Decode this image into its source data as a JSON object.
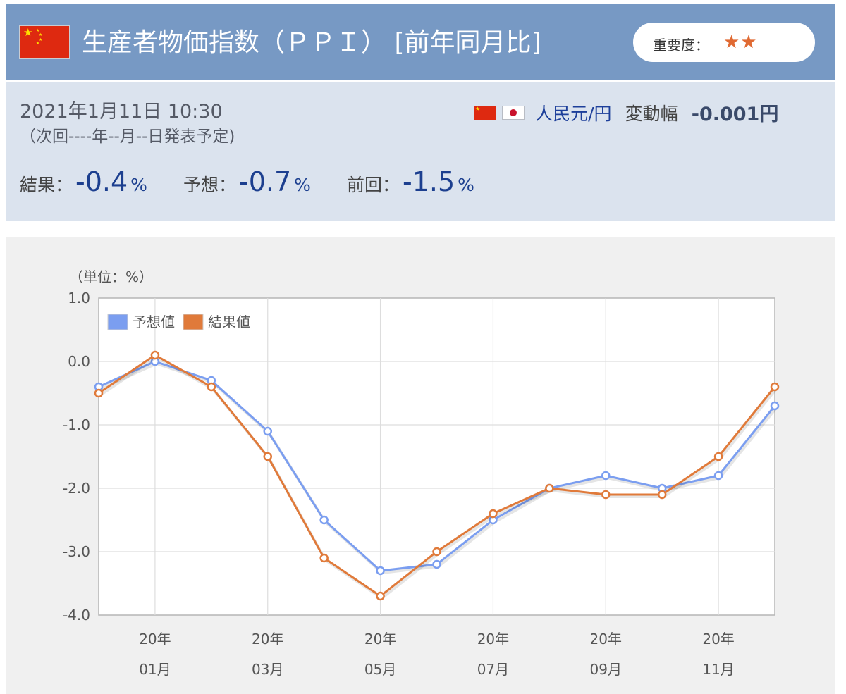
{
  "header": {
    "title": "生産者物価指数（ＰＰＩ） [前年同月比]",
    "importance_label": "重要度：",
    "importance_stars": "★★",
    "flag_icon": "china-flag-icon"
  },
  "info": {
    "date": "2021年1月11日 10:30",
    "next_release": "（次回----年--月--日発表予定)",
    "pair_name": "人民元/円",
    "change_label": "変動幅",
    "change_value": "-0.001円",
    "result_label": "結果：",
    "result_value": "-0.4",
    "forecast_label": "予想：",
    "forecast_value": "-0.7",
    "previous_label": "前回：",
    "previous_value": "-1.5",
    "unit": "%"
  },
  "colors": {
    "header_bg": "#7799c4",
    "info_bg": "#dbe3ee",
    "forecast_series": "#7b9ef0",
    "result_series": "#e07a3a"
  },
  "chart_data": {
    "type": "line",
    "unit_label": "（単位：%）",
    "ylim": [
      -4.0,
      1.0
    ],
    "y_ticks": [
      "1.0",
      "0.0",
      "-1.0",
      "-2.0",
      "-3.0",
      "-4.0"
    ],
    "x_tick_labels": [
      {
        "year": "20年",
        "month": "01月"
      },
      {
        "year": "20年",
        "month": "03月"
      },
      {
        "year": "20年",
        "month": "05月"
      },
      {
        "year": "20年",
        "month": "07月"
      },
      {
        "year": "20年",
        "month": "09月"
      },
      {
        "year": "20年",
        "month": "11月"
      }
    ],
    "x": [
      "2019-12",
      "2020-01",
      "2020-02",
      "2020-03",
      "2020-04",
      "2020-05",
      "2020-06",
      "2020-07",
      "2020-08",
      "2020-09",
      "2020-10",
      "2020-11",
      "2020-12"
    ],
    "legend": "top-left",
    "grid": true,
    "series": [
      {
        "name": "予想値",
        "values": [
          -0.4,
          0.0,
          -0.3,
          -1.1,
          -2.5,
          -3.3,
          -3.2,
          -2.5,
          -2.0,
          -1.8,
          -2.0,
          -1.8,
          -0.7
        ]
      },
      {
        "name": "結果値",
        "values": [
          -0.5,
          0.1,
          -0.4,
          -1.5,
          -3.1,
          -3.7,
          -3.0,
          -2.4,
          -2.0,
          -2.1,
          -2.1,
          -1.5,
          -0.4
        ]
      }
    ]
  }
}
